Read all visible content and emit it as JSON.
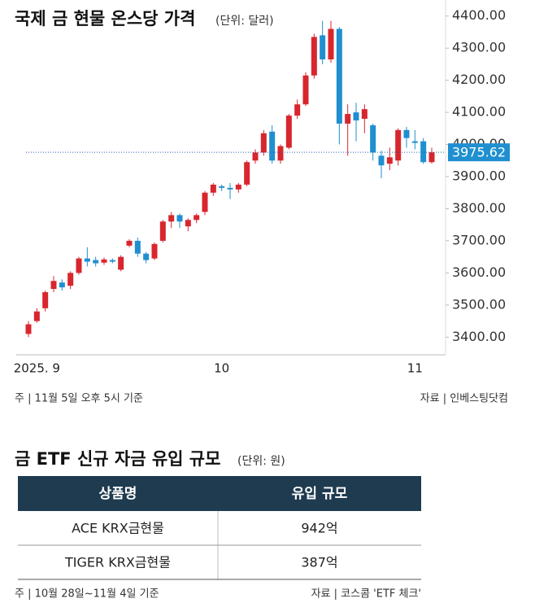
{
  "chart_data": {
    "type": "candlestick",
    "title": "국제 금 현물 온스당 가격",
    "subtitle": "(단위: 달러)",
    "categories": [
      null,
      "2025. 9",
      null,
      null,
      null,
      null,
      null,
      null,
      null,
      null,
      null,
      null,
      null,
      null,
      null,
      null,
      null,
      null,
      null,
      null,
      null,
      null,
      null,
      "10",
      null,
      null,
      null,
      null,
      null,
      null,
      null,
      null,
      null,
      null,
      null,
      null,
      null,
      null,
      null,
      null,
      null,
      null,
      null,
      null,
      null,
      null,
      "11",
      null,
      null
    ],
    "open": [
      3410,
      3450,
      3490,
      3550,
      3570,
      3560,
      3600,
      3645,
      3640,
      3632,
      3640,
      3610,
      3685,
      3700,
      3660,
      3645,
      3700,
      3760,
      3780,
      3745,
      3765,
      3790,
      3850,
      3870,
      3865,
      3860,
      3875,
      3950,
      3975,
      4040,
      3950,
      3990,
      4090,
      4125,
      4215,
      4340,
      4265,
      4360,
      4065,
      4100,
      4080,
      4060,
      3965,
      3940,
      3950,
      4045,
      4010,
      4010,
      3945
    ],
    "close": [
      3440,
      3480,
      3540,
      3575,
      3555,
      3600,
      3645,
      3635,
      3630,
      3642,
      3635,
      3650,
      3700,
      3660,
      3640,
      3690,
      3760,
      3780,
      3760,
      3765,
      3780,
      3850,
      3875,
      3865,
      3860,
      3875,
      3945,
      3975,
      4035,
      3950,
      3995,
      4090,
      4125,
      4215,
      4335,
      4265,
      4360,
      4065,
      4095,
      4075,
      4110,
      3975,
      3935,
      3960,
      4045,
      4020,
      4005,
      3945,
      3975.62
    ],
    "high": [
      3450,
      3490,
      3545,
      3590,
      3580,
      3605,
      3650,
      3680,
      3650,
      3648,
      3645,
      3655,
      3705,
      3710,
      3665,
      3695,
      3765,
      3790,
      3785,
      3770,
      3785,
      3855,
      3880,
      3875,
      3880,
      3880,
      3950,
      3985,
      4045,
      4060,
      4000,
      4095,
      4140,
      4225,
      4345,
      4385,
      4385,
      4365,
      4125,
      4130,
      4125,
      4065,
      3980,
      3990,
      4050,
      4055,
      4045,
      4020,
      3990
    ],
    "low": [
      3400,
      3445,
      3480,
      3540,
      3545,
      3550,
      3595,
      3620,
      3620,
      3625,
      3630,
      3605,
      3680,
      3650,
      3630,
      3640,
      3695,
      3740,
      3740,
      3730,
      3755,
      3780,
      3840,
      3855,
      3830,
      3850,
      3870,
      3940,
      3965,
      3940,
      3940,
      3985,
      4080,
      4120,
      4205,
      4250,
      4255,
      4000,
      3965,
      4010,
      4035,
      3950,
      3895,
      3920,
      3935,
      3990,
      3985,
      3940,
      3940
    ],
    "up_color": "#d8262e",
    "down_color": "#1f8fd0",
    "last_price": 3975.62,
    "ylim": [
      3345,
      4450
    ],
    "yticks": [
      {
        "value": 3400,
        "label": "3400.00"
      },
      {
        "value": 3500,
        "label": "3500.00"
      },
      {
        "value": 3600,
        "label": "3600.00"
      },
      {
        "value": 3700,
        "label": "3700.00"
      },
      {
        "value": 3800,
        "label": "3800.00"
      },
      {
        "value": 3900,
        "label": "3900.00"
      },
      {
        "value": 4000,
        "label": "4000.00"
      },
      {
        "value": 4100,
        "label": "4100.00"
      },
      {
        "value": 4200,
        "label": "4200.00"
      },
      {
        "value": 4300,
        "label": "4300.00"
      },
      {
        "value": 4400,
        "label": "4400.00"
      }
    ],
    "note": "주 | 11월 5일 오후 5시 기준",
    "source": "자료 | 인베스팅닷컴"
  },
  "table": {
    "title": "금 ETF 신규 자금 유입 규모",
    "subtitle": "(단위: 원)",
    "headers": [
      "상품명",
      "유입 규모"
    ],
    "rows": [
      [
        "ACE KRX금현물",
        "942억"
      ],
      [
        "TIGER KRX금현물",
        "387억"
      ]
    ],
    "note": "주 | 10월 28일~11월 4일 기준",
    "source": "자료 | 코스콤 'ETF 체크'"
  }
}
